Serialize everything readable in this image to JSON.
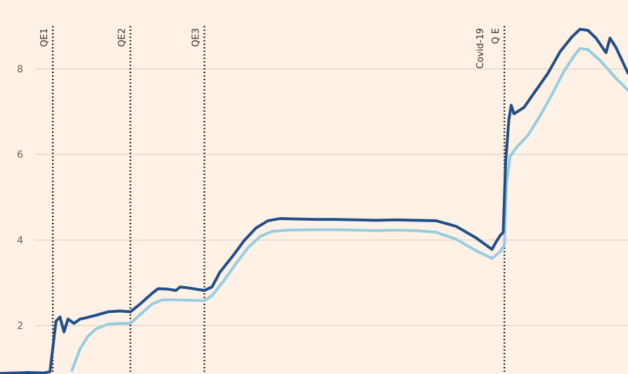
{
  "chart_data": {
    "type": "line",
    "title": "",
    "xlabel": "",
    "ylabel": "",
    "xlim": [
      2007.6,
      2023.3
    ],
    "ylim": [
      1.0,
      9.4
    ],
    "y_ticks": [
      2,
      4,
      6,
      8
    ],
    "y_tick_labels": [
      "2",
      "4",
      "6",
      "8"
    ],
    "grid": true,
    "legend": "none",
    "events": [
      {
        "x": 2008.92,
        "label": "QE1"
      },
      {
        "x": 2010.86,
        "label": "QE2"
      },
      {
        "x": 2012.71,
        "label": "QE3"
      },
      {
        "x": 2020.21,
        "label_lines": [
          "Covid-19",
          "Q E"
        ]
      }
    ],
    "series": [
      {
        "color": "#1f4e89",
        "points": [
          [
            2007.6,
            0.88
          ],
          [
            2008.0,
            0.89
          ],
          [
            2008.3,
            0.9
          ],
          [
            2008.7,
            0.89
          ],
          [
            2008.85,
            0.92
          ],
          [
            2008.93,
            1.55
          ],
          [
            2009.0,
            2.1
          ],
          [
            2009.1,
            2.2
          ],
          [
            2009.2,
            1.85
          ],
          [
            2009.3,
            2.15
          ],
          [
            2009.45,
            2.05
          ],
          [
            2009.6,
            2.15
          ],
          [
            2009.75,
            2.18
          ],
          [
            2010.0,
            2.24
          ],
          [
            2010.3,
            2.32
          ],
          [
            2010.6,
            2.34
          ],
          [
            2010.86,
            2.32
          ],
          [
            2011.1,
            2.5
          ],
          [
            2011.4,
            2.75
          ],
          [
            2011.55,
            2.86
          ],
          [
            2011.8,
            2.85
          ],
          [
            2012.0,
            2.82
          ],
          [
            2012.1,
            2.9
          ],
          [
            2012.3,
            2.88
          ],
          [
            2012.5,
            2.85
          ],
          [
            2012.71,
            2.82
          ],
          [
            2012.9,
            2.9
          ],
          [
            2013.1,
            3.25
          ],
          [
            2013.4,
            3.6
          ],
          [
            2013.7,
            3.98
          ],
          [
            2014.0,
            4.28
          ],
          [
            2014.3,
            4.45
          ],
          [
            2014.6,
            4.5
          ],
          [
            2015.0,
            4.49
          ],
          [
            2015.5,
            4.48
          ],
          [
            2016.0,
            4.48
          ],
          [
            2016.5,
            4.47
          ],
          [
            2017.0,
            4.46
          ],
          [
            2017.5,
            4.47
          ],
          [
            2018.0,
            4.46
          ],
          [
            2018.5,
            4.45
          ],
          [
            2019.0,
            4.32
          ],
          [
            2019.5,
            4.05
          ],
          [
            2019.9,
            3.78
          ],
          [
            2020.0,
            3.95
          ],
          [
            2020.1,
            4.1
          ],
          [
            2020.18,
            4.18
          ],
          [
            2020.24,
            5.8
          ],
          [
            2020.32,
            6.8
          ],
          [
            2020.38,
            7.15
          ],
          [
            2020.45,
            6.95
          ],
          [
            2020.7,
            7.1
          ],
          [
            2021.0,
            7.5
          ],
          [
            2021.3,
            7.9
          ],
          [
            2021.6,
            8.4
          ],
          [
            2021.9,
            8.75
          ],
          [
            2022.1,
            8.93
          ],
          [
            2022.3,
            8.9
          ],
          [
            2022.5,
            8.72
          ],
          [
            2022.75,
            8.38
          ],
          [
            2022.85,
            8.72
          ],
          [
            2023.0,
            8.5
          ],
          [
            2023.3,
            7.9
          ]
        ]
      },
      {
        "color": "#96cde0",
        "points": [
          [
            2009.4,
            0.95
          ],
          [
            2009.6,
            1.45
          ],
          [
            2009.8,
            1.75
          ],
          [
            2010.0,
            1.92
          ],
          [
            2010.3,
            2.03
          ],
          [
            2010.6,
            2.05
          ],
          [
            2010.86,
            2.05
          ],
          [
            2011.1,
            2.25
          ],
          [
            2011.4,
            2.5
          ],
          [
            2011.65,
            2.6
          ],
          [
            2012.0,
            2.6
          ],
          [
            2012.4,
            2.59
          ],
          [
            2012.71,
            2.58
          ],
          [
            2012.9,
            2.7
          ],
          [
            2013.2,
            3.05
          ],
          [
            2013.5,
            3.45
          ],
          [
            2013.8,
            3.82
          ],
          [
            2014.1,
            4.08
          ],
          [
            2014.4,
            4.2
          ],
          [
            2014.8,
            4.23
          ],
          [
            2015.5,
            4.24
          ],
          [
            2016.0,
            4.24
          ],
          [
            2016.5,
            4.23
          ],
          [
            2017.0,
            4.22
          ],
          [
            2017.5,
            4.23
          ],
          [
            2018.0,
            4.22
          ],
          [
            2018.5,
            4.18
          ],
          [
            2019.0,
            4.02
          ],
          [
            2019.5,
            3.75
          ],
          [
            2019.9,
            3.57
          ],
          [
            2020.1,
            3.72
          ],
          [
            2020.21,
            3.88
          ],
          [
            2020.26,
            5.3
          ],
          [
            2020.35,
            5.95
          ],
          [
            2020.5,
            6.15
          ],
          [
            2020.8,
            6.45
          ],
          [
            2021.1,
            6.9
          ],
          [
            2021.4,
            7.4
          ],
          [
            2021.7,
            7.95
          ],
          [
            2021.95,
            8.3
          ],
          [
            2022.1,
            8.48
          ],
          [
            2022.3,
            8.45
          ],
          [
            2022.6,
            8.2
          ],
          [
            2023.0,
            7.78
          ],
          [
            2023.3,
            7.5
          ]
        ]
      }
    ],
    "colors": {
      "background": "#fff1e5",
      "grid": "#d9cbc0",
      "tick_text": "#66605c",
      "event_line": "#1a1817",
      "event_text": "#33302e"
    }
  }
}
